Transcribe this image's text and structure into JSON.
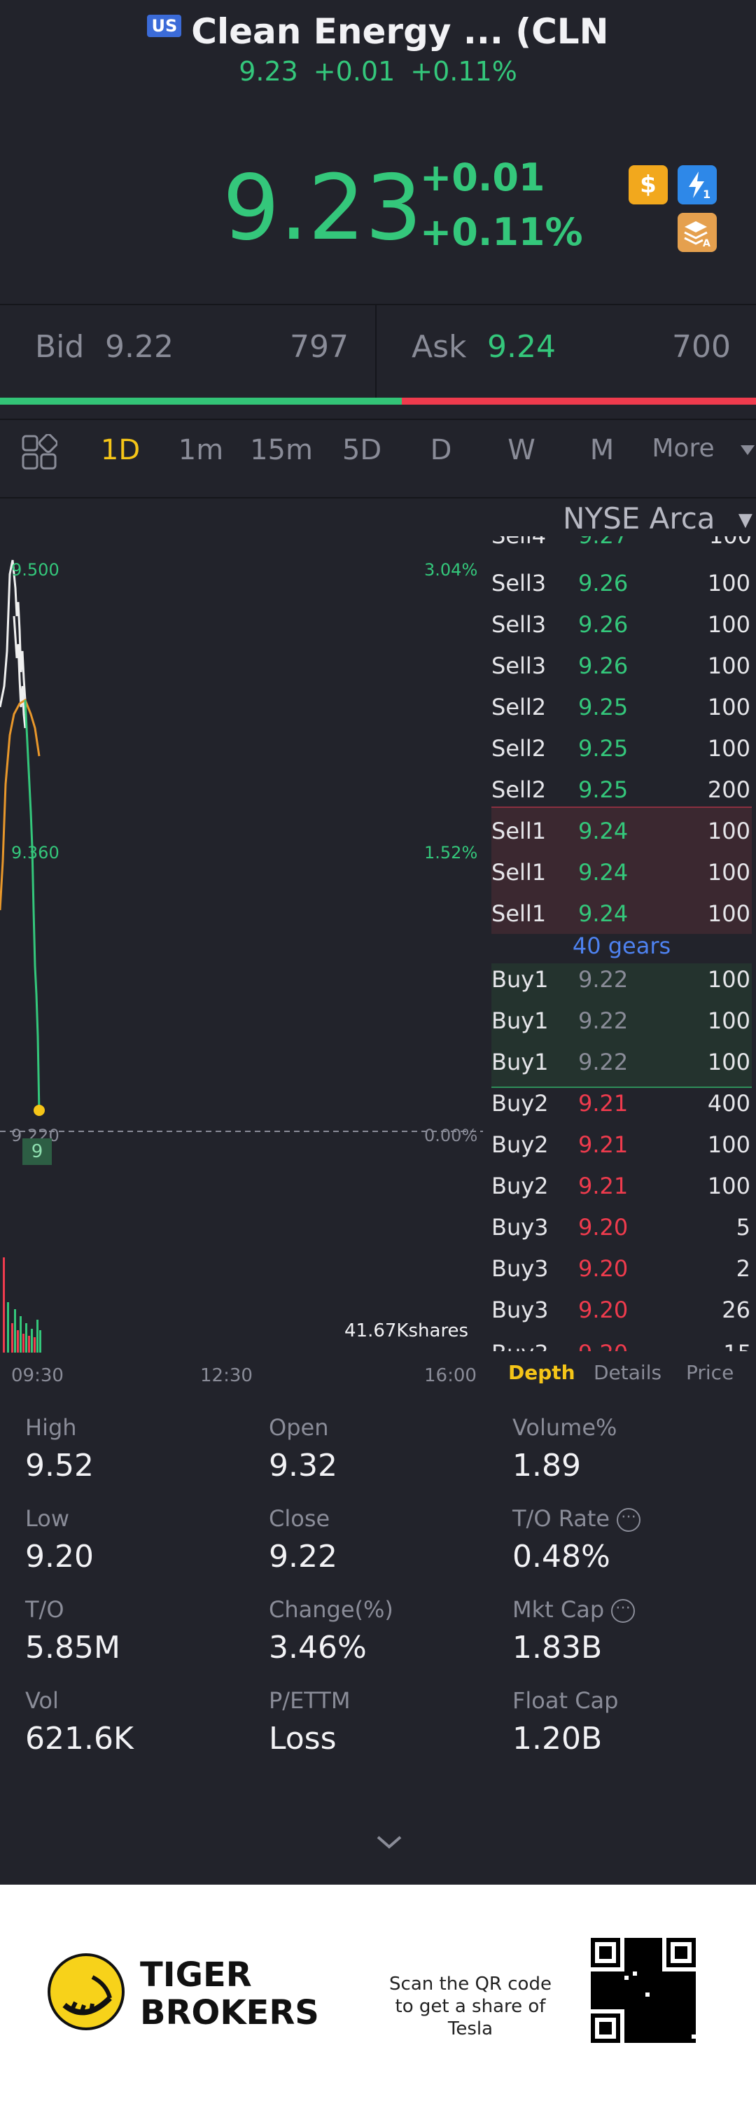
{
  "header": {
    "market_badge": "US",
    "title": "Clean Energy ... (CLN",
    "price": "9.23",
    "change": "+0.01",
    "change_pct": "+0.11%"
  },
  "quote": {
    "price": "9.23",
    "change": "+0.01",
    "change_pct": "+0.11%",
    "icons": [
      "dollar-icon",
      "flash-icon",
      "layers-icon"
    ],
    "flash_sub": "1",
    "layers_sub": "A"
  },
  "bid": {
    "label": "Bid",
    "price": "9.22",
    "size": "797"
  },
  "ask": {
    "label": "Ask",
    "price": "9.24",
    "size": "700"
  },
  "timeframes": {
    "items": [
      "1D",
      "1m",
      "15m",
      "5D",
      "D",
      "W",
      "M",
      "More"
    ],
    "active": "1D"
  },
  "chart": {
    "exchange": "NYSE Arca",
    "price_labels": [
      "9.500",
      "9.360",
      "9.220"
    ],
    "pct_labels": [
      "3.04%",
      "1.52%",
      "0.00%"
    ],
    "marker_label": "9",
    "volume_label": "41.67Kshares",
    "time_labels": [
      "09:30",
      "12:30",
      "16:00"
    ]
  },
  "depth": {
    "rows": [
      {
        "side": "sell",
        "label": "Sell3",
        "price": "9.26",
        "qty": "100"
      },
      {
        "side": "sell",
        "label": "Sell3",
        "price": "9.26",
        "qty": "100"
      },
      {
        "side": "sell",
        "label": "Sell3",
        "price": "9.26",
        "qty": "100"
      },
      {
        "side": "sell",
        "label": "Sell2",
        "price": "9.25",
        "qty": "100"
      },
      {
        "side": "sell",
        "label": "Sell2",
        "price": "9.25",
        "qty": "100"
      },
      {
        "side": "sell",
        "label": "Sell2",
        "price": "9.25",
        "qty": "200"
      },
      {
        "side": "sell1",
        "label": "Sell1",
        "price": "9.24",
        "qty": "100"
      },
      {
        "side": "sell1",
        "label": "Sell1",
        "price": "9.24",
        "qty": "100"
      },
      {
        "side": "sell1",
        "label": "Sell1",
        "price": "9.24",
        "qty": "100"
      },
      {
        "side": "buy1",
        "label": "Buy1",
        "price": "9.22",
        "qty": "100"
      },
      {
        "side": "buy1",
        "label": "Buy1",
        "price": "9.22",
        "qty": "100"
      },
      {
        "side": "buy1",
        "label": "Buy1",
        "price": "9.22",
        "qty": "100"
      },
      {
        "side": "buy",
        "label": "Buy2",
        "price": "9.21",
        "qty": "400"
      },
      {
        "side": "buy",
        "label": "Buy2",
        "price": "9.21",
        "qty": "100"
      },
      {
        "side": "buy",
        "label": "Buy2",
        "price": "9.21",
        "qty": "100"
      },
      {
        "side": "buy",
        "label": "Buy3",
        "price": "9.20",
        "qty": "5"
      },
      {
        "side": "buy",
        "label": "Buy3",
        "price": "9.20",
        "qty": "2"
      },
      {
        "side": "buy",
        "label": "Buy3",
        "price": "9.20",
        "qty": "26"
      }
    ],
    "gears": "40 gears",
    "tabs": [
      "Depth",
      "Details",
      "Price"
    ],
    "active_tab": "Depth"
  },
  "stats": [
    {
      "label": "High",
      "value": "9.52"
    },
    {
      "label": "Open",
      "value": "9.32"
    },
    {
      "label": "Volume%",
      "value": "1.89"
    },
    {
      "label": "Low",
      "value": "9.20"
    },
    {
      "label": "Close",
      "value": "9.22"
    },
    {
      "label": "T/O Rate",
      "value": "0.48%",
      "info": true
    },
    {
      "label": "T/O",
      "value": "5.85M"
    },
    {
      "label": "Change(%)",
      "value": "3.46%"
    },
    {
      "label": "Mkt Cap",
      "value": "1.83B",
      "info": true
    },
    {
      "label": "Vol",
      "value": "621.6K"
    },
    {
      "label": "P/ETTM",
      "value": "Loss"
    },
    {
      "label": "Float Cap",
      "value": "1.20B"
    }
  ],
  "footer": {
    "brand_line1": "TIGER",
    "brand_line2": "BROKERS",
    "qr_text": "Scan the QR code to get a share of Tesla"
  },
  "colors": {
    "up": "#34c77b",
    "down": "#ef3b4d",
    "active_tab": "#f5c518",
    "background": "#22232b",
    "gears": "#4e82f0"
  }
}
